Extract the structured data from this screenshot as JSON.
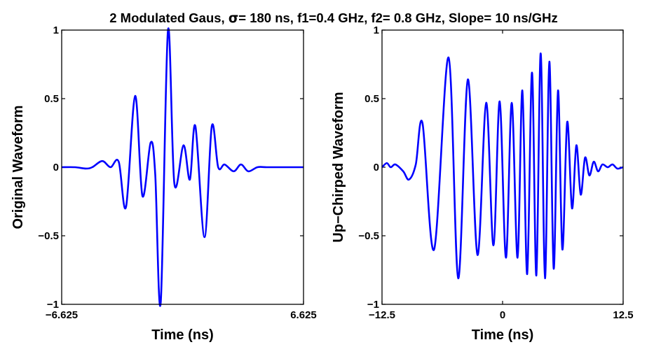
{
  "figure": {
    "title_pre": "2 Modulated Gaus, ",
    "title_sigma": "σ",
    "title_post": "= 180 ns, f1=0.4 GHz, f2= 0.8 GHz, Slope= 10 ns/GHz"
  },
  "chart_data": [
    {
      "type": "line",
      "title": "",
      "xlabel": "Time (ns)",
      "ylabel": "Original Waveform",
      "xlim": [
        -6.625,
        6.625
      ],
      "ylim": [
        -1,
        1
      ],
      "xticks": [
        {
          "v": -6.625,
          "label": "−6.625"
        },
        {
          "v": 6.625,
          "label": "6.625"
        }
      ],
      "yticks": [
        {
          "v": -1,
          "label": "−1"
        },
        {
          "v": -0.5,
          "label": "−0.5"
        },
        {
          "v": 0,
          "label": "0"
        },
        {
          "v": 0.5,
          "label": "0.5"
        },
        {
          "v": 1,
          "label": "1"
        }
      ],
      "color": "#0000ff",
      "series": [
        {
          "x": [
            -6.625,
            -5.9,
            -5.3,
            -4.95,
            -4.4,
            -3.95,
            -3.5,
            -3.1,
            -2.6,
            -2.2,
            -1.75,
            -1.5,
            -1.2,
            -0.8,
            -0.45,
            0.05,
            0.4,
            0.7,
            1.2,
            1.6,
            1.95,
            2.3,
            2.8,
            3.2,
            3.6,
            4.1,
            4.6,
            5.2,
            5.8,
            6.625
          ],
          "y": [
            0,
            0,
            -0.01,
            0,
            0.045,
            0,
            0.04,
            -0.29,
            0.52,
            -0.21,
            0.18,
            -0.05,
            -0.99,
            1.0,
            -0.12,
            0.16,
            -0.09,
            0.3,
            -0.51,
            0.3,
            0.0,
            0.02,
            -0.03,
            0.02,
            -0.03,
            0.0,
            0.0,
            0.0,
            0.0,
            0.0
          ]
        }
      ]
    },
    {
      "type": "line",
      "title": "",
      "xlabel": "Time (ns)",
      "ylabel": "Up−Chirped Waveform",
      "xlim": [
        -12.5,
        12.5
      ],
      "ylim": [
        -1,
        1
      ],
      "xticks": [
        {
          "v": -12.5,
          "label": "−12.5"
        },
        {
          "v": 0,
          "label": "0"
        },
        {
          "v": 12.5,
          "label": "12.5"
        }
      ],
      "yticks": [
        {
          "v": -1,
          "label": "−1"
        },
        {
          "v": -0.5,
          "label": "−0.5"
        },
        {
          "v": 0,
          "label": "0"
        },
        {
          "v": 0.5,
          "label": "0.5"
        },
        {
          "v": 1,
          "label": "1"
        }
      ],
      "color": "#0000ff",
      "series": [
        {
          "x": [
            -12.5,
            -12.0,
            -11.6,
            -11.1,
            -10.3,
            -9.7,
            -9.0,
            -8.3,
            -7.1,
            -5.6,
            -4.6,
            -3.6,
            -2.6,
            -1.7,
            -0.95,
            -0.3,
            0.35,
            0.95,
            1.55,
            2.05,
            2.55,
            3.05,
            3.5,
            3.95,
            4.4,
            4.85,
            5.3,
            5.75,
            6.2,
            6.7,
            7.2,
            7.65,
            8.1,
            8.55,
            9.0,
            9.45,
            9.9,
            10.35,
            10.9,
            11.4,
            11.9,
            12.5
          ],
          "y": [
            0.0,
            0.03,
            0.0,
            0.02,
            -0.03,
            -0.09,
            0.02,
            0.32,
            -0.6,
            0.8,
            -0.81,
            0.64,
            -0.64,
            0.47,
            -0.57,
            0.48,
            -0.66,
            0.47,
            -0.66,
            0.56,
            -0.78,
            0.69,
            -0.79,
            0.83,
            -0.81,
            0.77,
            -0.74,
            0.56,
            -0.6,
            0.33,
            -0.3,
            0.16,
            -0.2,
            0.07,
            -0.06,
            0.04,
            -0.03,
            0.02,
            0.0,
            0.02,
            -0.01,
            0.0
          ]
        }
      ]
    }
  ]
}
